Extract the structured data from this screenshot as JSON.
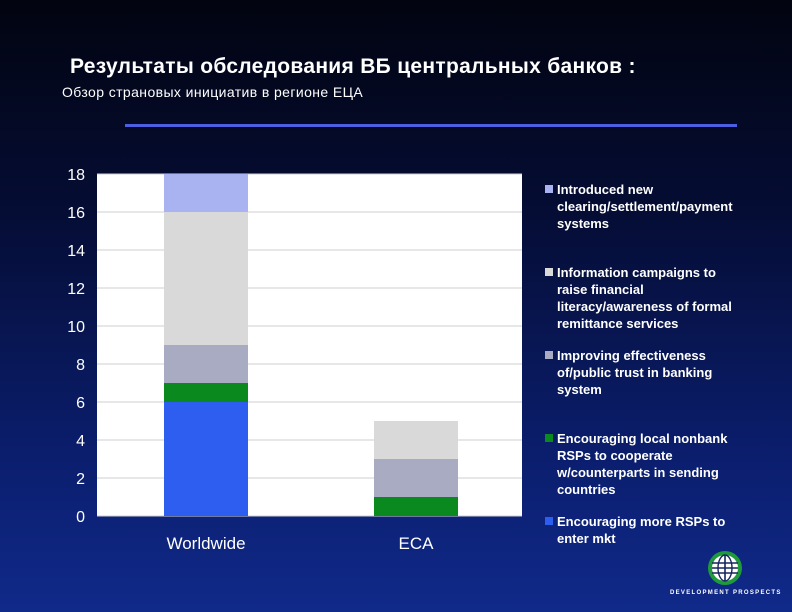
{
  "header": {
    "title": "Результаты обследования ВБ центральных банков :",
    "subtitle": "Обзор страновых инициатив в регионе ЕЦА"
  },
  "chart_data": {
    "type": "bar",
    "stacked": true,
    "categories": [
      "Worldwide",
      "ECA"
    ],
    "ylim": [
      0,
      18
    ],
    "yticks": [
      0,
      2,
      4,
      6,
      8,
      10,
      12,
      14,
      16,
      18
    ],
    "grid": true,
    "legend_position": "right",
    "series": [
      {
        "name": "Encouraging more RSPs to enter mkt",
        "values": [
          6,
          0
        ],
        "color": "#2e5ef0",
        "legend_lines": [
          "Encouraging more RSPs to",
          "enter mkt"
        ]
      },
      {
        "name": "Encouraging local nonbank RSPs to cooperate w/counterparts in sending countries",
        "values": [
          1,
          1
        ],
        "color": "#0a8a1e",
        "legend_lines": [
          "Encouraging local nonbank",
          "RSPs to cooperate",
          "w/counterparts in sending",
          "countries"
        ]
      },
      {
        "name": "Improving effectiveness of/public trust in banking system",
        "values": [
          2,
          2
        ],
        "color": "#a9abc2",
        "legend_lines": [
          "Improving effectiveness",
          "of/public trust in banking",
          "system"
        ]
      },
      {
        "name": "Information campaigns to raise financial literacy/awareness of formal remittance services",
        "values": [
          7,
          2
        ],
        "color": "#d9d9d9",
        "legend_lines": [
          "Information campaigns to",
          "raise financial",
          "literacy/awareness of formal",
          "remittance services"
        ]
      },
      {
        "name": "Introduced new clearing/settlement/payment systems",
        "values": [
          2,
          0
        ],
        "color": "#aab3f2",
        "legend_lines": [
          "Introduced new",
          "clearing/settlement/payment",
          "systems"
        ]
      }
    ]
  },
  "logo": {
    "text": "DEVELOPMENT PROSPECTS",
    "icon": "globe-icon",
    "colors": {
      "ring": "#1f9a3a",
      "inner": "#ffffff",
      "lines": "#16255f"
    }
  }
}
